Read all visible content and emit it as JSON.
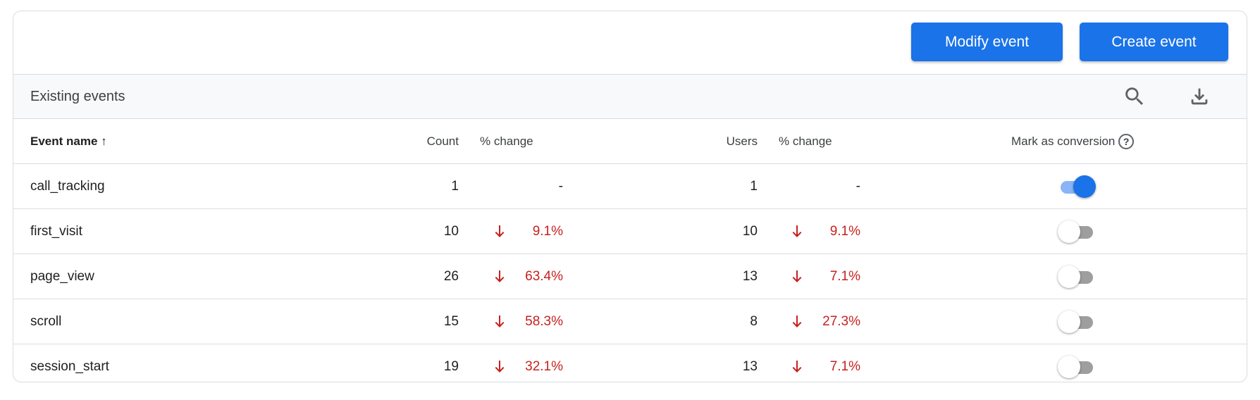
{
  "toolbar": {
    "modify_label": "Modify event",
    "create_label": "Create event"
  },
  "section": {
    "title": "Existing events",
    "icons": [
      "search-icon",
      "download-icon"
    ]
  },
  "columns": {
    "event_name": "Event name",
    "count": "Count",
    "count_change": "% change",
    "users": "Users",
    "users_change": "% change",
    "conversion": "Mark as conversion"
  },
  "colors": {
    "accent": "#1a73e8",
    "negative": "#c5221f"
  },
  "rows": [
    {
      "name": "call_tracking",
      "count": "1",
      "count_change": "-",
      "count_dir": "none",
      "users": "1",
      "users_change": "-",
      "users_dir": "none",
      "conversion": true
    },
    {
      "name": "first_visit",
      "count": "10",
      "count_change": "9.1%",
      "count_dir": "down",
      "users": "10",
      "users_change": "9.1%",
      "users_dir": "down",
      "conversion": false
    },
    {
      "name": "page_view",
      "count": "26",
      "count_change": "63.4%",
      "count_dir": "down",
      "users": "13",
      "users_change": "7.1%",
      "users_dir": "down",
      "conversion": false
    },
    {
      "name": "scroll",
      "count": "15",
      "count_change": "58.3%",
      "count_dir": "down",
      "users": "8",
      "users_change": "27.3%",
      "users_dir": "down",
      "conversion": false
    },
    {
      "name": "session_start",
      "count": "19",
      "count_change": "32.1%",
      "count_dir": "down",
      "users": "13",
      "users_change": "7.1%",
      "users_dir": "down",
      "conversion": false
    }
  ]
}
